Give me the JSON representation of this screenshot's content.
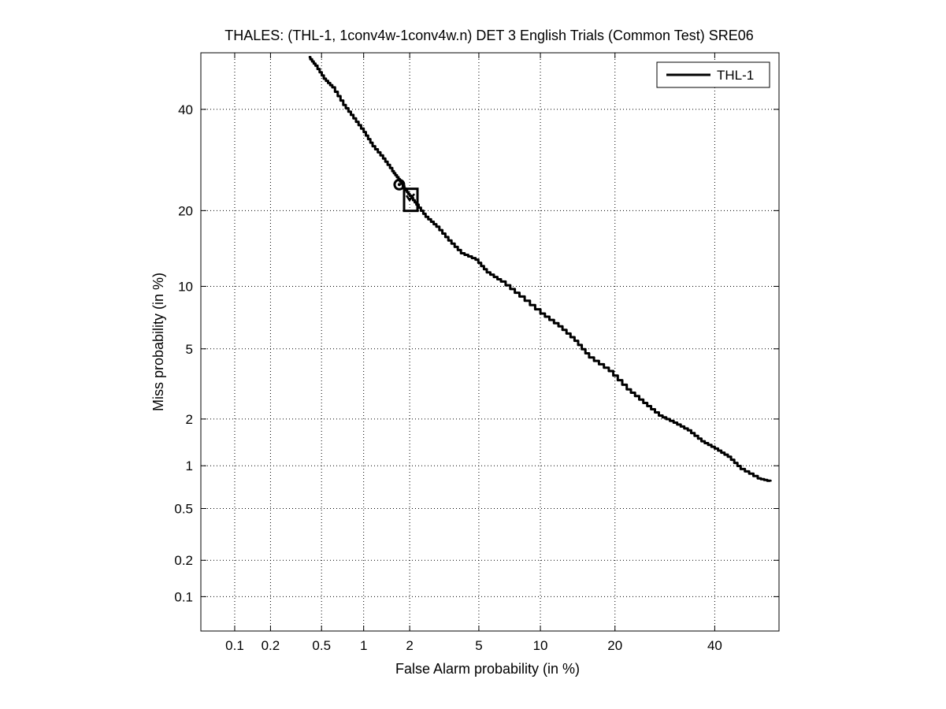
{
  "chart_data": {
    "type": "line",
    "title": "THALES: (THL-1, 1conv4w-1conv4w.n) DET 3 English Trials (Common Test) SRE06",
    "xlabel": "False Alarm probability (in %)",
    "ylabel": "Miss probability (in %)",
    "xscale": "normal-deviate (probit)",
    "yscale": "normal-deviate (probit)",
    "xlim": [
      0.05,
      55
    ],
    "ylim": [
      0.05,
      53
    ],
    "xticks": [
      0.1,
      0.2,
      0.5,
      1,
      2,
      5,
      10,
      20,
      40
    ],
    "xtick_labels": [
      "0.1",
      "0.2",
      "0.5",
      "1",
      "2",
      "5",
      "10",
      "20",
      "40"
    ],
    "yticks": [
      0.1,
      0.2,
      0.5,
      1,
      2,
      5,
      10,
      20,
      40
    ],
    "ytick_labels": [
      "0.1",
      "0.2",
      "0.5",
      "1",
      "2",
      "5",
      "10",
      "20",
      "40"
    ],
    "grid": true,
    "legend": {
      "position": "top-right",
      "entries": [
        "THL-1"
      ]
    },
    "series": [
      {
        "name": "THL-1",
        "color": "#000000",
        "x": [
          0.4,
          0.45,
          0.52,
          0.6,
          0.72,
          0.85,
          1.0,
          1.15,
          1.35,
          1.55,
          1.7,
          1.85,
          2.0,
          2.2,
          2.5,
          2.9,
          3.4,
          4.0,
          4.8,
          5.5,
          6.5,
          8.0,
          10.0,
          12.0,
          14.0,
          16.0,
          19.0,
          22.0,
          25.0,
          28.0,
          31.0,
          34.0,
          37.0,
          40.0,
          43.0,
          46.0,
          50.0,
          53.0
        ],
        "y": [
          52,
          50,
          47,
          45,
          41,
          38,
          35,
          32,
          29.5,
          27,
          25.5,
          23.8,
          22.5,
          21.0,
          19.0,
          17.5,
          15.5,
          13.8,
          13.0,
          11.5,
          10.5,
          9.0,
          7.5,
          6.5,
          5.5,
          4.5,
          3.8,
          3.0,
          2.5,
          2.1,
          1.9,
          1.7,
          1.45,
          1.3,
          1.15,
          0.95,
          0.82,
          0.78
        ]
      }
    ],
    "markers": [
      {
        "name": "actual-decision-point",
        "shape": "circle",
        "x": 1.72,
        "y": 24.5
      },
      {
        "name": "min-dcf-point",
        "shape": "square",
        "x": 2.02,
        "y": 21.8
      },
      {
        "name": "min-dcf-check",
        "shape": "check",
        "x": 2.02,
        "y": 22.0
      }
    ]
  }
}
